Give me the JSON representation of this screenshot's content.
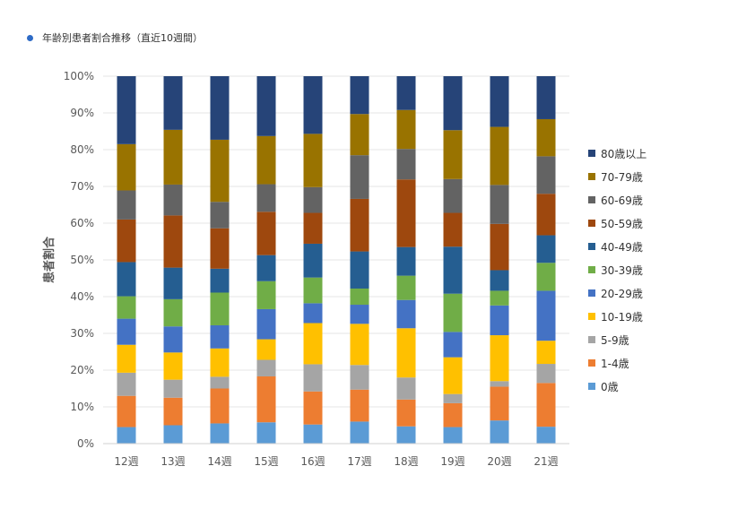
{
  "page": {
    "title": "年齢別患者割合推移（直近10週間）"
  },
  "chart_data": {
    "type": "bar",
    "stacked": true,
    "percent_stacked": true,
    "title": "年齢別患者割合推移（直近10週間）",
    "xlabel": "",
    "ylabel": "患者割合",
    "ylim": [
      0,
      100
    ],
    "yticks": [
      "0%",
      "10%",
      "20%",
      "30%",
      "40%",
      "50%",
      "60%",
      "70%",
      "80%",
      "90%",
      "100%"
    ],
    "grid": true,
    "legend_position": "right",
    "categories": [
      "12週",
      "13週",
      "14週",
      "15週",
      "16週",
      "17週",
      "18週",
      "19週",
      "20週",
      "21週"
    ],
    "series": [
      {
        "name": "0歳",
        "color": "#5b9bd5",
        "values": [
          4.5,
          5.0,
          5.5,
          5.8,
          5.2,
          6.0,
          4.7,
          4.5,
          6.3,
          4.6
        ]
      },
      {
        "name": "1-4歳",
        "color": "#ed7d31",
        "values": [
          8.5,
          7.5,
          9.5,
          12.5,
          9.0,
          8.7,
          7.3,
          6.5,
          9.2,
          11.9
        ]
      },
      {
        "name": "5-9歳",
        "color": "#a5a5a5",
        "values": [
          6.3,
          4.9,
          3.2,
          4.5,
          7.4,
          6.7,
          6.0,
          2.5,
          1.5,
          5.2
        ]
      },
      {
        "name": "10-19歳",
        "color": "#ffc000",
        "values": [
          7.6,
          7.4,
          7.7,
          5.6,
          11.2,
          11.2,
          13.4,
          10.0,
          12.5,
          6.3
        ]
      },
      {
        "name": "20-29歳",
        "color": "#4472c4",
        "values": [
          7.1,
          7.1,
          6.3,
          8.2,
          5.4,
          5.2,
          7.7,
          6.9,
          8.1,
          13.6
        ]
      },
      {
        "name": "30-39歳",
        "color": "#70ad47",
        "values": [
          6.1,
          7.4,
          8.9,
          7.6,
          7.0,
          4.4,
          6.6,
          10.4,
          4.0,
          7.6
        ]
      },
      {
        "name": "40-49歳",
        "color": "#255e91",
        "values": [
          9.3,
          8.6,
          6.5,
          7.1,
          9.2,
          10.1,
          7.8,
          12.8,
          5.6,
          7.5
        ]
      },
      {
        "name": "50-59歳",
        "color": "#9e480e",
        "values": [
          11.6,
          14.2,
          11.0,
          11.8,
          8.4,
          14.3,
          18.4,
          9.2,
          12.6,
          11.3
        ]
      },
      {
        "name": "60-69歳",
        "color": "#636363",
        "values": [
          7.9,
          8.4,
          7.2,
          7.5,
          7.0,
          11.9,
          8.3,
          9.2,
          10.6,
          10.2
        ]
      },
      {
        "name": "70-79歳",
        "color": "#997300",
        "values": [
          12.6,
          14.9,
          16.9,
          13.1,
          14.5,
          11.2,
          10.6,
          13.3,
          15.8,
          10.1
        ]
      },
      {
        "name": "80歳以上",
        "color": "#264478",
        "values": [
          18.5,
          14.6,
          17.3,
          16.3,
          15.7,
          10.3,
          9.2,
          14.7,
          13.8,
          11.7
        ]
      }
    ]
  }
}
